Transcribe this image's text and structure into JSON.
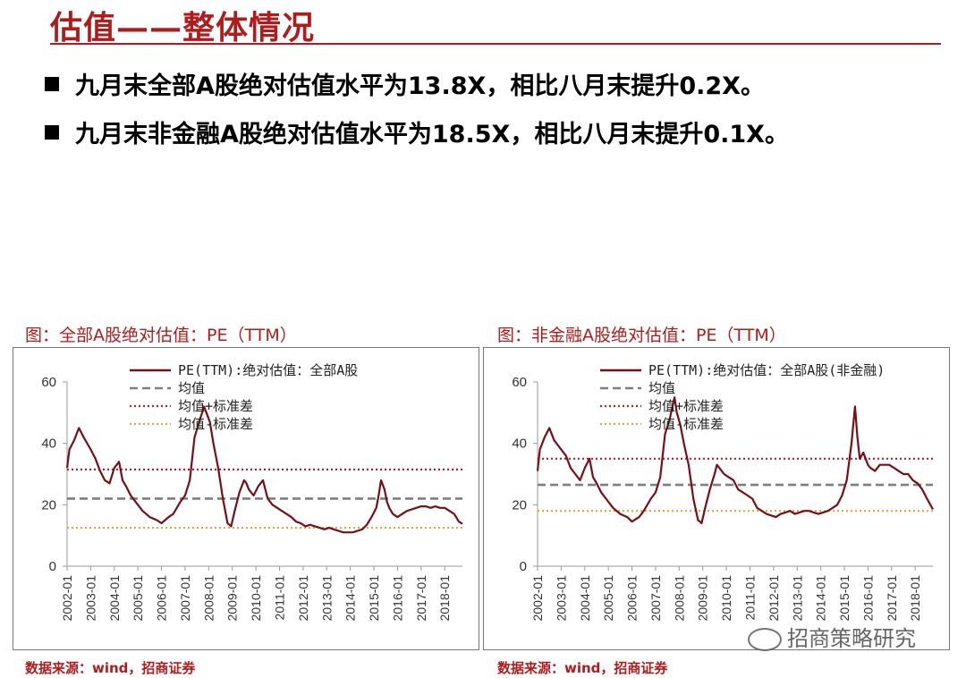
{
  "slide": {
    "title": "估值——整体情况",
    "bullets": [
      "九月末全部A股绝对估值水平为13.8X，相比八月末提升0.2X。",
      "九月末非金融A股绝对估值水平为18.5X，相比八月末提升0.1X。"
    ],
    "watermark": "招商策略研究",
    "colors": {
      "accent": "#b01c1c",
      "series": "#7b0d14",
      "mean": "#7f7f7f",
      "upper": "#b0242c",
      "lower": "#e0a44a"
    }
  },
  "panels": [
    {
      "caption": "图：全部A股绝对估值：PE（TTM）",
      "source": "数据来源：wind，招商证券"
    },
    {
      "caption": "图：非金融A股绝对估值：PE（TTM）",
      "source": "数据来源：wind，招商证券"
    }
  ],
  "chart_data": [
    {
      "type": "line",
      "title": "",
      "xlabel": "",
      "ylabel": "",
      "ylim": [
        0,
        60
      ],
      "yticks": [
        0,
        20,
        40,
        60
      ],
      "xlim": [
        2002.0,
        2018.75
      ],
      "x_tick_labels": [
        "2002-01",
        "2003-01",
        "2004-01",
        "2005-01",
        "2006-01",
        "2007-01",
        "2008-01",
        "2009-01",
        "2010-01",
        "2011-01",
        "2012-01",
        "2013-01",
        "2014-01",
        "2015-01",
        "2016-01",
        "2017-01",
        "2018-01"
      ],
      "legend": [
        "PE(TTM):绝对估值：全部A股",
        "均值",
        "均值+标准差",
        "均值-标准差"
      ],
      "legend_position": "top",
      "grid": false,
      "series": [
        {
          "name": "PE(TTM):绝对估值：全部A股",
          "style": "solid",
          "x": [
            2002.0,
            2002.1,
            2002.3,
            2002.5,
            2002.7,
            2003.0,
            2003.2,
            2003.4,
            2003.6,
            2003.8,
            2004.0,
            2004.2,
            2004.35,
            2004.5,
            2004.7,
            2004.9,
            2005.2,
            2005.5,
            2005.8,
            2006.0,
            2006.3,
            2006.5,
            2006.8,
            2007.0,
            2007.2,
            2007.4,
            2007.6,
            2007.8,
            2007.9,
            2008.05,
            2008.2,
            2008.4,
            2008.6,
            2008.8,
            2008.95,
            2009.1,
            2009.3,
            2009.5,
            2009.6,
            2009.7,
            2009.9,
            2010.1,
            2010.3,
            2010.5,
            2010.7,
            2010.9,
            2011.1,
            2011.3,
            2011.5,
            2011.7,
            2011.9,
            2012.1,
            2012.3,
            2012.5,
            2012.7,
            2012.9,
            2013.1,
            2013.3,
            2013.5,
            2013.7,
            2013.9,
            2014.1,
            2014.3,
            2014.5,
            2014.7,
            2014.9,
            2015.1,
            2015.2,
            2015.3,
            2015.45,
            2015.55,
            2015.65,
            2015.8,
            2016.0,
            2016.2,
            2016.4,
            2016.6,
            2016.8,
            2017.0,
            2017.2,
            2017.4,
            2017.6,
            2017.8,
            2018.0,
            2018.2,
            2018.4,
            2018.6,
            2018.75
          ],
          "values": [
            32,
            38,
            41,
            45,
            42,
            38,
            35,
            31,
            28,
            27,
            32,
            34,
            28,
            26,
            23,
            21,
            18,
            16,
            15,
            14,
            16,
            17,
            21,
            23,
            28,
            42,
            47,
            52,
            50,
            47,
            40,
            32,
            22,
            14,
            13,
            18,
            24,
            28,
            27,
            25,
            23,
            26,
            28,
            22,
            20,
            19,
            18,
            17,
            16,
            14.5,
            14,
            13,
            13.5,
            13,
            12.5,
            12,
            12.5,
            12,
            11.5,
            11,
            11,
            11,
            11.5,
            12,
            13.5,
            16,
            19,
            23,
            28,
            25,
            21,
            19,
            17,
            16,
            17,
            18,
            18.5,
            19,
            19.5,
            19.5,
            19,
            19.5,
            19,
            19,
            18,
            17,
            14.5,
            13.8
          ]
        },
        {
          "name": "均值",
          "style": "dashed",
          "constant": 22
        },
        {
          "name": "均值+标准差",
          "style": "dotted",
          "constant": 31.5
        },
        {
          "name": "均值-标准差",
          "style": "dotted",
          "constant": 12.5
        }
      ]
    },
    {
      "type": "line",
      "title": "",
      "xlabel": "",
      "ylabel": "",
      "ylim": [
        0,
        60
      ],
      "yticks": [
        0,
        20,
        40,
        60
      ],
      "xlim": [
        2002.0,
        2018.75
      ],
      "x_tick_labels": [
        "2002-01",
        "2003-01",
        "2004-01",
        "2005-01",
        "2006-01",
        "2007-01",
        "2008-01",
        "2009-01",
        "2010-01",
        "2011-01",
        "2012-01",
        "2013-01",
        "2014-01",
        "2015-01",
        "2016-01",
        "2017-01",
        "2018-01"
      ],
      "legend": [
        "PE(TTM):绝对估值：全部A股(非金融)",
        "均值",
        "均值+标准差",
        "均值-标准差"
      ],
      "legend_position": "top",
      "grid": false,
      "series": [
        {
          "name": "PE(TTM):绝对估值：全部A股(非金融)",
          "style": "solid",
          "x": [
            2002.0,
            2002.1,
            2002.3,
            2002.5,
            2002.7,
            2003.0,
            2003.2,
            2003.4,
            2003.6,
            2003.8,
            2004.0,
            2004.2,
            2004.35,
            2004.5,
            2004.7,
            2004.9,
            2005.2,
            2005.5,
            2005.8,
            2006.0,
            2006.3,
            2006.5,
            2006.8,
            2007.0,
            2007.2,
            2007.4,
            2007.6,
            2007.8,
            2007.9,
            2008.05,
            2008.2,
            2008.4,
            2008.6,
            2008.8,
            2008.95,
            2009.1,
            2009.3,
            2009.5,
            2009.6,
            2009.7,
            2009.9,
            2010.1,
            2010.3,
            2010.5,
            2010.7,
            2010.9,
            2011.1,
            2011.3,
            2011.5,
            2011.7,
            2011.9,
            2012.1,
            2012.3,
            2012.5,
            2012.7,
            2012.9,
            2013.1,
            2013.3,
            2013.5,
            2013.7,
            2013.9,
            2014.1,
            2014.3,
            2014.5,
            2014.7,
            2014.9,
            2015.1,
            2015.3,
            2015.45,
            2015.55,
            2015.65,
            2015.8,
            2016.0,
            2016.1,
            2016.3,
            2016.5,
            2016.7,
            2016.9,
            2017.1,
            2017.3,
            2017.5,
            2017.7,
            2017.9,
            2018.1,
            2018.3,
            2018.5,
            2018.75
          ],
          "values": [
            31,
            38,
            42,
            45,
            41,
            38,
            36,
            32,
            30,
            28,
            32,
            35,
            29,
            27,
            24,
            22,
            19,
            17,
            16,
            14.5,
            16,
            18,
            22,
            24,
            29,
            43,
            48,
            55,
            50,
            46,
            40,
            33,
            22,
            15,
            14,
            19,
            25,
            30,
            33,
            32,
            30,
            29,
            28,
            25,
            24,
            23,
            22,
            19,
            18,
            17,
            16.5,
            16,
            17,
            17.5,
            18,
            17,
            17.5,
            18,
            18,
            17.5,
            17,
            17.5,
            18,
            19,
            20,
            23,
            28,
            40,
            52,
            42,
            35,
            37,
            33,
            32,
            31,
            33,
            33,
            33,
            32,
            31,
            30,
            30,
            28,
            27,
            25,
            22,
            18.5
          ]
        },
        {
          "name": "均值",
          "style": "dashed",
          "constant": 26.5
        },
        {
          "name": "均值+标准差",
          "style": "dotted",
          "constant": 35
        },
        {
          "name": "均值-标准差",
          "style": "dotted",
          "constant": 18
        }
      ]
    }
  ]
}
